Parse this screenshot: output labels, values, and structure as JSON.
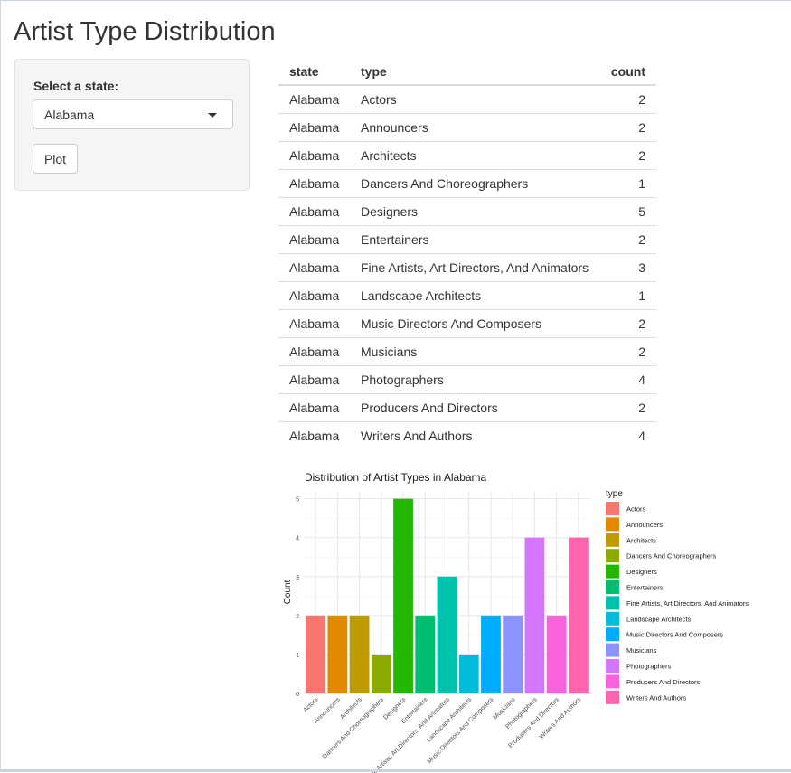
{
  "page": {
    "title": "Artist Type Distribution"
  },
  "sidebar": {
    "state_label": "Select a state:",
    "state_selected": "Alabama",
    "plot_button": "Plot"
  },
  "table": {
    "headers": {
      "state": "state",
      "type": "type",
      "count": "count"
    },
    "rows": [
      {
        "state": "Alabama",
        "type": "Actors",
        "count": "2"
      },
      {
        "state": "Alabama",
        "type": "Announcers",
        "count": "2"
      },
      {
        "state": "Alabama",
        "type": "Architects",
        "count": "2"
      },
      {
        "state": "Alabama",
        "type": "Dancers And Choreographers",
        "count": "1"
      },
      {
        "state": "Alabama",
        "type": "Designers",
        "count": "5"
      },
      {
        "state": "Alabama",
        "type": "Entertainers",
        "count": "2"
      },
      {
        "state": "Alabama",
        "type": "Fine Artists, Art Directors, And Animators",
        "count": "3"
      },
      {
        "state": "Alabama",
        "type": "Landscape Architects",
        "count": "1"
      },
      {
        "state": "Alabama",
        "type": "Music Directors And Composers",
        "count": "2"
      },
      {
        "state": "Alabama",
        "type": "Musicians",
        "count": "2"
      },
      {
        "state": "Alabama",
        "type": "Photographers",
        "count": "4"
      },
      {
        "state": "Alabama",
        "type": "Producers And Directors",
        "count": "2"
      },
      {
        "state": "Alabama",
        "type": "Writers And Authors",
        "count": "4"
      }
    ]
  },
  "chart_data": {
    "type": "bar",
    "title": "Distribution of Artist Types in Alabama",
    "xlabel": "",
    "ylabel": "Count",
    "ylim": [
      0,
      5.2
    ],
    "yticks": [
      0,
      1,
      2,
      3,
      4,
      5
    ],
    "grid": true,
    "legend_title": "type",
    "legend_position": "right",
    "categories": [
      "Actors",
      "Announcers",
      "Architects",
      "Dancers And Choreographers",
      "Designers",
      "Entertainers",
      "Fine Artists, Art Directors, And Animators",
      "Landscape Architects",
      "Music Directors And Composers",
      "Musicians",
      "Photographers",
      "Producers And Directors",
      "Writers And Authors"
    ],
    "values": [
      2,
      2,
      2,
      1,
      5,
      2,
      3,
      1,
      2,
      2,
      4,
      2,
      4
    ],
    "colors": [
      "#F8766D",
      "#E18A00",
      "#BE9C00",
      "#8CAB00",
      "#24B700",
      "#00BE70",
      "#00C1AB",
      "#00BBDA",
      "#00ACFC",
      "#8B93FF",
      "#D575FE",
      "#F962DD",
      "#FF65AC"
    ]
  }
}
